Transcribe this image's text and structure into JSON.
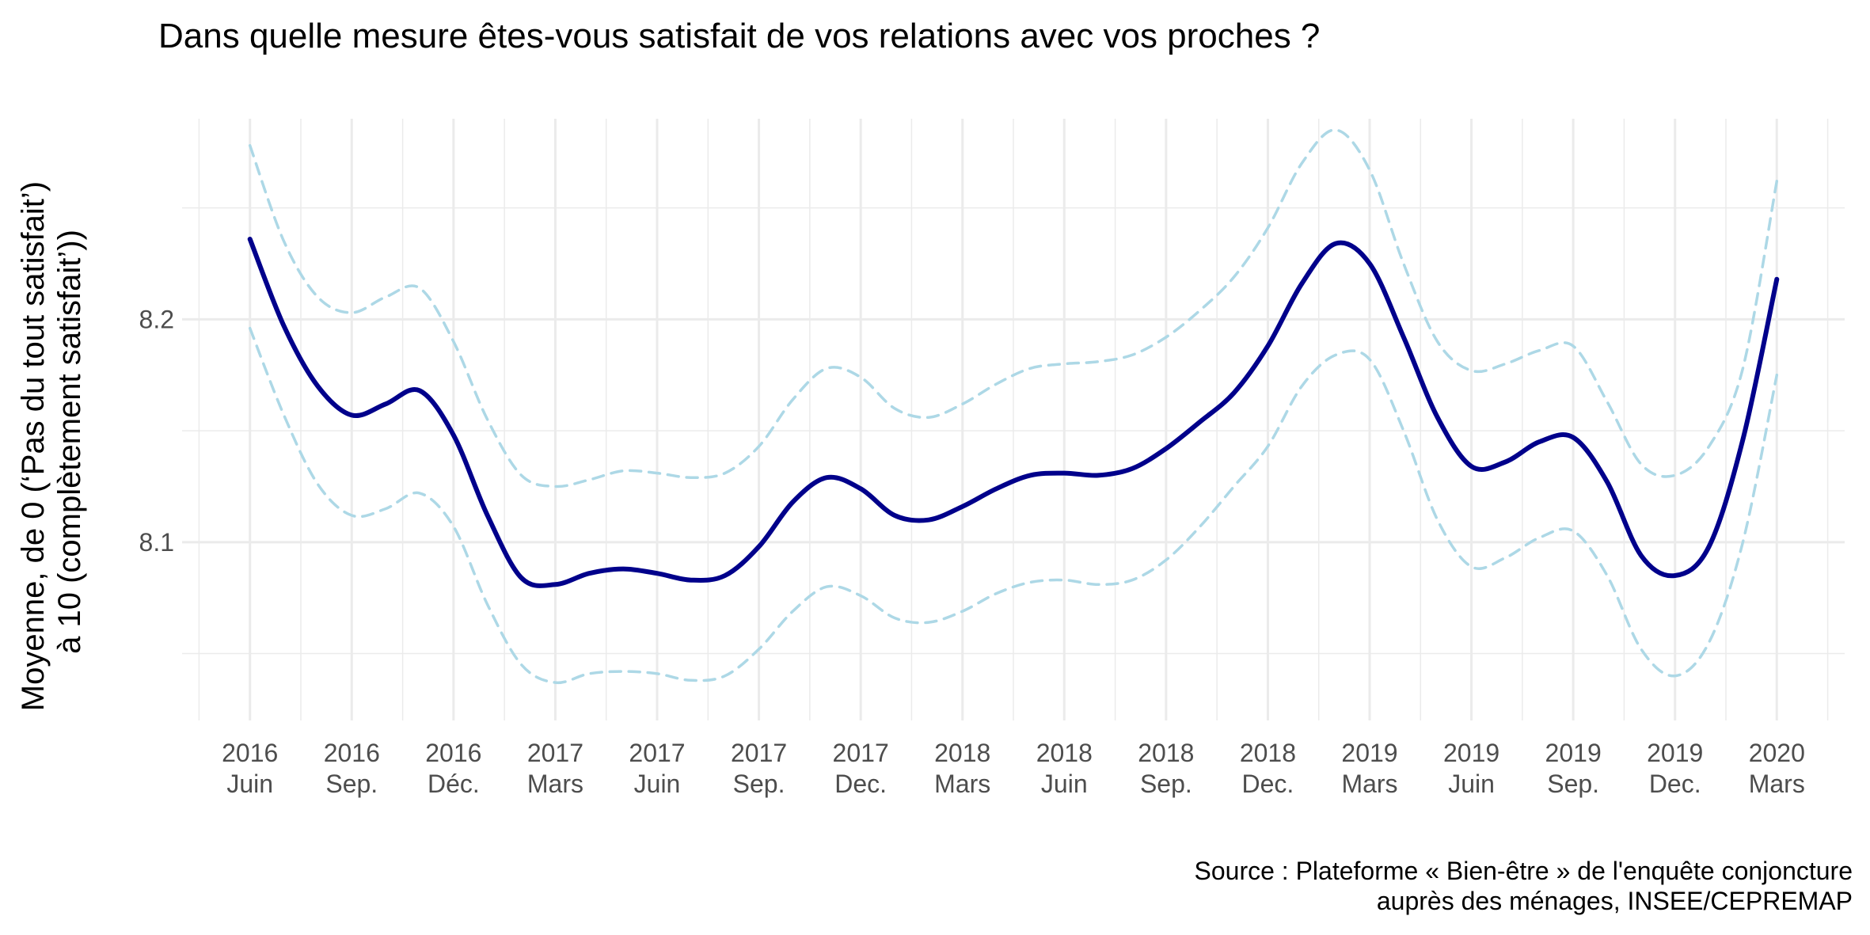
{
  "chart_data": {
    "type": "line",
    "title": "Dans quelle mesure êtes-vous satisfait de vos relations avec vos proches ?",
    "ylabel_lines": [
      "Moyenne, de 0 (‘Pas du tout satisfait’)",
      "à 10 (complètement satisfait’))"
    ],
    "xlabel": "",
    "caption_lines": [
      "Source : Plateforme « Bien-être » de l'enquête conjoncture",
      "auprès des ménages, INSEE/CEPREMAP"
    ],
    "x_tick_labels": [
      [
        "2016",
        "Juin"
      ],
      [
        "2016",
        "Sep."
      ],
      [
        "2016",
        "Déc."
      ],
      [
        "2017",
        "Mars"
      ],
      [
        "2017",
        "Juin"
      ],
      [
        "2017",
        "Sep."
      ],
      [
        "2017",
        "Dec."
      ],
      [
        "2018",
        "Mars"
      ],
      [
        "2018",
        "Juin"
      ],
      [
        "2018",
        "Sep."
      ],
      [
        "2018",
        "Dec."
      ],
      [
        "2019",
        "Mars"
      ],
      [
        "2019",
        "Juin"
      ],
      [
        "2019",
        "Sep."
      ],
      [
        "2019",
        "Dec."
      ],
      [
        "2020",
        "Mars"
      ]
    ],
    "y_ticks": [
      8.1,
      8.2
    ],
    "y_tick_labels": [
      "8.1",
      "8.2"
    ],
    "xlim": [
      "2016-04",
      "2020-05"
    ],
    "ylim": [
      8.02,
      8.29
    ],
    "grid": true,
    "colors": {
      "mean": "#00008B",
      "ci": "#ADD8E6",
      "grid": "#EBEBEB"
    },
    "series": [
      {
        "key": "mean",
        "style": "solid",
        "x": [
          "2016-06",
          "2016-07",
          "2016-08",
          "2016-09",
          "2016-10",
          "2016-11",
          "2016-12",
          "2017-01",
          "2017-02",
          "2017-03",
          "2017-04",
          "2017-05",
          "2017-06",
          "2017-07",
          "2017-08",
          "2017-09",
          "2017-10",
          "2017-11",
          "2017-12",
          "2018-01",
          "2018-02",
          "2018-03",
          "2018-04",
          "2018-05",
          "2018-06",
          "2018-07",
          "2018-08",
          "2018-09",
          "2018-10",
          "2018-11",
          "2018-12",
          "2019-01",
          "2019-02",
          "2019-03",
          "2019-04",
          "2019-05",
          "2019-06",
          "2019-07",
          "2019-08",
          "2019-09",
          "2019-10",
          "2019-11",
          "2019-12",
          "2020-01",
          "2020-02",
          "2020-03"
        ],
        "values": [
          8.236,
          8.197,
          8.17,
          8.157,
          8.162,
          8.168,
          8.148,
          8.112,
          8.084,
          8.081,
          8.086,
          8.088,
          8.086,
          8.083,
          8.085,
          8.098,
          8.118,
          8.129,
          8.124,
          8.112,
          8.11,
          8.116,
          8.124,
          8.13,
          8.131,
          8.13,
          8.133,
          8.142,
          8.154,
          8.167,
          8.188,
          8.216,
          8.234,
          8.225,
          8.192,
          8.156,
          8.134,
          8.136,
          8.145,
          8.147,
          8.127,
          8.094,
          8.085,
          8.098,
          8.146,
          8.218
        ]
      },
      {
        "key": "ci_upper",
        "style": "dashed",
        "x": [
          "2016-06",
          "2016-07",
          "2016-08",
          "2016-09",
          "2016-10",
          "2016-11",
          "2016-12",
          "2017-01",
          "2017-02",
          "2017-03",
          "2017-04",
          "2017-05",
          "2017-06",
          "2017-07",
          "2017-08",
          "2017-09",
          "2017-10",
          "2017-11",
          "2017-12",
          "2018-01",
          "2018-02",
          "2018-03",
          "2018-04",
          "2018-05",
          "2018-06",
          "2018-07",
          "2018-08",
          "2018-09",
          "2018-10",
          "2018-11",
          "2018-12",
          "2019-01",
          "2019-02",
          "2019-03",
          "2019-04",
          "2019-05",
          "2019-06",
          "2019-07",
          "2019-08",
          "2019-09",
          "2019-10",
          "2019-11",
          "2019-12",
          "2020-01",
          "2020-02",
          "2020-03"
        ],
        "values": [
          8.278,
          8.235,
          8.21,
          8.203,
          8.21,
          8.214,
          8.19,
          8.155,
          8.13,
          8.125,
          8.128,
          8.132,
          8.131,
          8.129,
          8.131,
          8.143,
          8.164,
          8.178,
          8.174,
          8.16,
          8.156,
          8.162,
          8.171,
          8.178,
          8.18,
          8.181,
          8.184,
          8.192,
          8.204,
          8.219,
          8.241,
          8.27,
          8.285,
          8.267,
          8.225,
          8.19,
          8.177,
          8.18,
          8.186,
          8.188,
          8.163,
          8.135,
          8.13,
          8.143,
          8.178,
          8.262
        ]
      },
      {
        "key": "ci_lower",
        "style": "dashed",
        "x": [
          "2016-06",
          "2016-07",
          "2016-08",
          "2016-09",
          "2016-10",
          "2016-11",
          "2016-12",
          "2017-01",
          "2017-02",
          "2017-03",
          "2017-04",
          "2017-05",
          "2017-06",
          "2017-07",
          "2017-08",
          "2017-09",
          "2017-10",
          "2017-11",
          "2017-12",
          "2018-01",
          "2018-02",
          "2018-03",
          "2018-04",
          "2018-05",
          "2018-06",
          "2018-07",
          "2018-08",
          "2018-09",
          "2018-10",
          "2018-11",
          "2018-12",
          "2019-01",
          "2019-02",
          "2019-03",
          "2019-04",
          "2019-05",
          "2019-06",
          "2019-07",
          "2019-08",
          "2019-09",
          "2019-10",
          "2019-11",
          "2019-12",
          "2020-01",
          "2020-02",
          "2020-03"
        ],
        "values": [
          8.196,
          8.157,
          8.126,
          8.112,
          8.115,
          8.122,
          8.107,
          8.072,
          8.045,
          8.037,
          8.041,
          8.042,
          8.041,
          8.038,
          8.04,
          8.052,
          8.069,
          8.08,
          8.076,
          8.066,
          8.064,
          8.069,
          8.077,
          8.082,
          8.083,
          8.081,
          8.083,
          8.092,
          8.107,
          8.125,
          8.143,
          8.17,
          8.184,
          8.182,
          8.15,
          8.11,
          8.089,
          8.093,
          8.102,
          8.105,
          8.085,
          8.052,
          8.04,
          8.055,
          8.1,
          8.175
        ]
      }
    ]
  }
}
